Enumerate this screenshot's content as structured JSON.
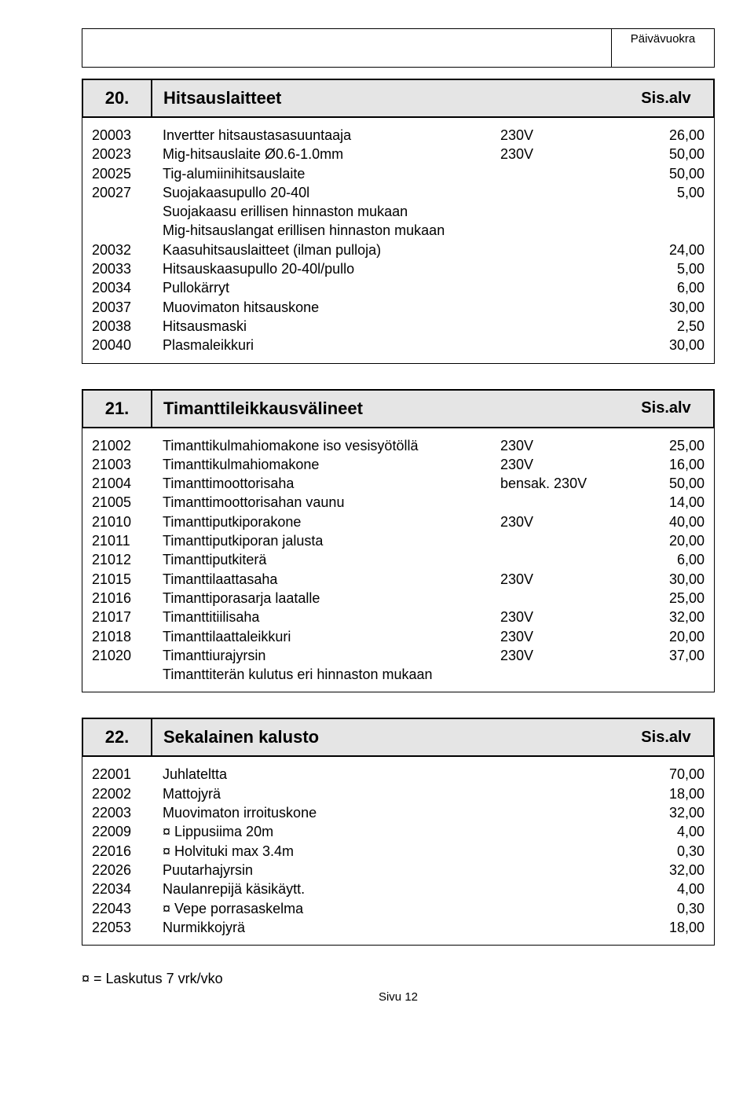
{
  "top_header": {
    "label": "Päivävuokra"
  },
  "sections": [
    {
      "num": "20.",
      "title": "Hitsauslaitteet",
      "suffix": "Sis.alv",
      "rows": [
        {
          "code": "20003",
          "desc": "Invertter hitsaustasasuuntaaja",
          "volt": "230V",
          "price": "26,00"
        },
        {
          "code": "20023",
          "desc": "Mig-hitsauslaite Ø0.6-1.0mm",
          "volt": "230V",
          "price": "50,00"
        },
        {
          "code": "20025",
          "desc": "Tig-alumiinihitsauslaite",
          "volt": "",
          "price": "50,00"
        },
        {
          "code": "20027",
          "desc": "Suojakaasupullo 20-40l",
          "volt": "",
          "price": "5,00"
        },
        {
          "code": "",
          "desc": "Suojakaasu erillisen hinnaston mukaan",
          "volt": "",
          "price": ""
        },
        {
          "code": "",
          "desc": "Mig-hitsauslangat erillisen hinnaston mukaan",
          "volt": "",
          "price": ""
        },
        {
          "code": "20032",
          "desc": "Kaasuhitsauslaitteet (ilman pulloja)",
          "volt": "",
          "price": "24,00"
        },
        {
          "code": "20033",
          "desc": "Hitsauskaasupullo 20-40l/pullo",
          "volt": "",
          "price": "5,00"
        },
        {
          "code": "20034",
          "desc": "Pullokärryt",
          "volt": "",
          "price": "6,00"
        },
        {
          "code": "20037",
          "desc": "Muovimaton hitsauskone",
          "volt": "",
          "price": "30,00"
        },
        {
          "code": "20038",
          "desc": "Hitsausmaski",
          "volt": "",
          "price": "2,50"
        },
        {
          "code": "20040",
          "desc": "Plasmaleikkuri",
          "volt": "",
          "price": "30,00"
        }
      ]
    },
    {
      "num": "21.",
      "title": "Timanttileikkausvälineet",
      "suffix": "Sis.alv",
      "rows": [
        {
          "code": "21002",
          "desc": "Timanttikulmahiomakone iso vesisyötöllä",
          "volt": "230V",
          "price": "25,00"
        },
        {
          "code": "21003",
          "desc": "Timanttikulmahiomakone",
          "volt": "230V",
          "price": "16,00"
        },
        {
          "code": "21004",
          "desc": "Timanttimoottorisaha",
          "volt": "bensak. 230V",
          "price": "50,00"
        },
        {
          "code": "21005",
          "desc": "Timanttimoottorisahan vaunu",
          "volt": "",
          "price": "14,00"
        },
        {
          "code": "21010",
          "desc": "Timanttiputkiporakone",
          "volt": "230V",
          "price": "40,00"
        },
        {
          "code": "21011",
          "desc": "Timanttiputkiporan jalusta",
          "volt": "",
          "price": "20,00"
        },
        {
          "code": "21012",
          "desc": "Timanttiputkiterä",
          "volt": "",
          "price": "6,00"
        },
        {
          "code": "21015",
          "desc": "Timanttilaattasaha",
          "volt": "230V",
          "price": "30,00"
        },
        {
          "code": "21016",
          "desc": "Timanttiporasarja laatalle",
          "volt": "",
          "price": "25,00"
        },
        {
          "code": "21017",
          "desc": "Timanttitiilisaha",
          "volt": "230V",
          "price": "32,00"
        },
        {
          "code": "21018",
          "desc": "Timanttilaattaleikkuri",
          "volt": "230V",
          "price": "20,00"
        },
        {
          "code": "21020",
          "desc": "Timanttiurajyrsin",
          "volt": "230V",
          "price": "37,00"
        },
        {
          "code": "",
          "desc": "Timanttiterän kulutus eri hinnaston mukaan",
          "volt": "",
          "price": ""
        }
      ]
    },
    {
      "num": "22.",
      "title": "Sekalainen kalusto",
      "suffix": "Sis.alv",
      "rows": [
        {
          "code": "22001",
          "desc": "Juhlateltta",
          "volt": "",
          "price": "70,00"
        },
        {
          "code": "22002",
          "desc": "Mattojyrä",
          "volt": "",
          "price": "18,00"
        },
        {
          "code": "22003",
          "desc": "Muovimaton irroituskone",
          "volt": "",
          "price": "32,00"
        },
        {
          "code": "22009",
          "desc": "¤ Lippusiima 20m",
          "volt": "",
          "price": "4,00"
        },
        {
          "code": "22016",
          "desc": "¤ Holvituki max 3.4m",
          "volt": "",
          "price": "0,30"
        },
        {
          "code": "22026",
          "desc": "Puutarhajyrsin",
          "volt": "",
          "price": "32,00"
        },
        {
          "code": "22034",
          "desc": "Naulanrepijä käsikäytt.",
          "volt": "",
          "price": "4,00"
        },
        {
          "code": "22043",
          "desc": "¤ Vepe porrasaskelma",
          "volt": "",
          "price": "0,30"
        },
        {
          "code": "22053",
          "desc": "Nurmikkojyrä",
          "volt": "",
          "price": "18,00"
        }
      ]
    }
  ],
  "footer_note": "¤ = Laskutus 7 vrk/vko",
  "page_number": "Sivu 12"
}
